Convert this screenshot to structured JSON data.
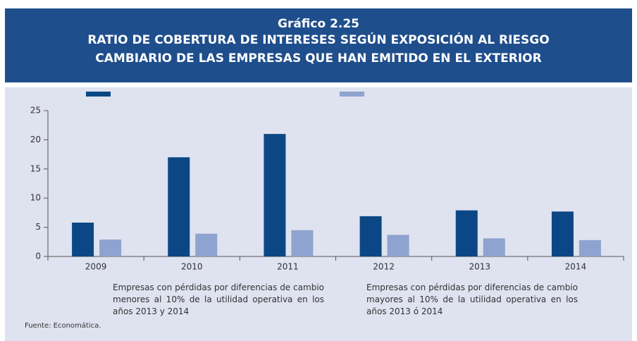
{
  "chart_data": {
    "type": "bar",
    "heading": "Gráfico 2.25",
    "title_lines": [
      "RATIO DE COBERTURA DE INTERESES SEGÚN EXPOSICIÓN AL RIESGO",
      "CAMBIARIO DE LAS EMPRESAS QUE HAN EMITIDO EN EL EXTERIOR"
    ],
    "categories": [
      "2009",
      "2010",
      "2011",
      "2012",
      "2013",
      "2014"
    ],
    "series": [
      {
        "name": "Empresas con pérdidas por diferencias de cambio menores al 10% de la utilidad operativa en los años 2013 y 2014",
        "color": "#0b4785",
        "values": [
          5.8,
          17.0,
          21.0,
          6.9,
          7.9,
          7.7
        ]
      },
      {
        "name": "Empresas con pérdidas por diferencias de cambio mayores al 10% de la utilidad operativa en los años 2013 ó 2014",
        "color": "#8ea3cf",
        "values": [
          2.9,
          3.9,
          4.5,
          3.7,
          3.1,
          2.8
        ]
      }
    ],
    "ylim": [
      0,
      25
    ],
    "yticks": [
      0,
      5,
      10,
      15,
      20,
      25
    ],
    "source": "Fuente: Economática."
  }
}
